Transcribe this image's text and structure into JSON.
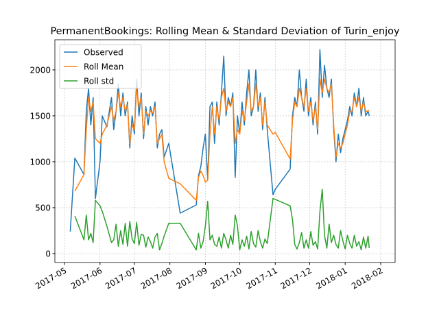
{
  "chart_data": {
    "type": "line",
    "title": "PermanentBookings: Rolling Mean & Standard Deviation of Turin_enjoy",
    "x": [
      736455,
      736459,
      736467,
      736469,
      736471,
      736473,
      736475,
      736477,
      736481,
      736483,
      736487,
      736491,
      736493,
      736495,
      736497,
      736499,
      736501,
      736503,
      736505,
      736507,
      736509,
      736511,
      736513,
      736515,
      736517,
      736519,
      736521,
      736523,
      736525,
      736527,
      736529,
      736531,
      736533,
      736535,
      736537,
      736541,
      736551,
      736565,
      736567,
      736569,
      736571,
      736573,
      736575,
      736577,
      736579,
      736581,
      736583,
      736585,
      736587,
      736589,
      736591,
      736593,
      736595,
      736597,
      736599,
      736601,
      736603,
      736605,
      736607,
      736609,
      736611,
      736613,
      736615,
      736617,
      736619,
      736621,
      736623,
      736625,
      736627,
      736632,
      736634,
      736647,
      736649,
      736651,
      736653,
      736655,
      736657,
      736659,
      736661,
      736663,
      736665,
      736667,
      736669,
      736671,
      736673,
      736675,
      736677,
      736679,
      736681,
      736683,
      736685,
      736687,
      736689,
      736691,
      736693,
      736695,
      736697,
      736699,
      736701,
      736703,
      736705,
      736707,
      736709,
      736711,
      736713,
      736715,
      736716
    ],
    "series": [
      {
        "name": "Observed",
        "color": "#1f77b4",
        "values": [
          240,
          1040,
          860,
          1550,
          1800,
          1400,
          1700,
          600,
          1000,
          1500,
          1380,
          1700,
          1350,
          1550,
          1850,
          1500,
          1750,
          1500,
          1650,
          1150,
          1500,
          1300,
          1900,
          1500,
          1750,
          1250,
          1600,
          1400,
          1600,
          1500,
          1650,
          1150,
          1300,
          1350,
          1050,
          1200,
          440,
          530,
          850,
          950,
          1150,
          1300,
          800,
          1600,
          1650,
          1200,
          1650,
          1400,
          1750,
          2150,
          1500,
          1700,
          1600,
          1750,
          830,
          1500,
          1300,
          1650,
          1400,
          1750,
          2000,
          1500,
          1600,
          2000,
          1550,
          1750,
          1350,
          1700,
          1350,
          640,
          700,
          920,
          1500,
          1700,
          1600,
          2000,
          1700,
          1550,
          1900,
          1500,
          1700,
          1400,
          1650,
          1300,
          2220,
          1700,
          2050,
          1800,
          1700,
          1900,
          1350,
          1000,
          1300,
          1100,
          1250,
          1350,
          1450,
          1600,
          1500,
          1750,
          1600,
          1800,
          1500,
          1700,
          1500,
          1550,
          1500
        ]
      },
      {
        "name": "Roll Mean",
        "color": "#ff7f0e",
        "values": [
          null,
          680,
          860,
          1350,
          1700,
          1550,
          1650,
          1250,
          1200,
          1300,
          1400,
          1600,
          1450,
          1550,
          1750,
          1600,
          1700,
          1550,
          1620,
          1200,
          1400,
          1350,
          1800,
          1600,
          1700,
          1300,
          1550,
          1500,
          1550,
          1530,
          1600,
          1200,
          1250,
          1300,
          1000,
          820,
          760,
          580,
          830,
          900,
          850,
          780,
          800,
          1300,
          1600,
          1300,
          1600,
          1450,
          1700,
          1800,
          1550,
          1650,
          1600,
          1700,
          1200,
          1350,
          1300,
          1550,
          1450,
          1650,
          1850,
          1550,
          1600,
          1850,
          1600,
          1700,
          1400,
          1650,
          1400,
          1300,
          1320,
          1030,
          1450,
          1650,
          1600,
          1800,
          1700,
          1600,
          1800,
          1550,
          1650,
          1450,
          1600,
          1350,
          1900,
          1750,
          1900,
          1800,
          1750,
          1850,
          1400,
          1050,
          1200,
          1150,
          1200,
          1300,
          1400,
          1550,
          1550,
          1700,
          1600,
          1700,
          1550,
          1650,
          1550,
          1550,
          1560
        ]
      },
      {
        "name": "Roll std",
        "color": "#2ca02c",
        "values": [
          null,
          410,
          150,
          420,
          150,
          220,
          120,
          580,
          520,
          460,
          300,
          120,
          150,
          320,
          80,
          250,
          100,
          330,
          80,
          350,
          160,
          110,
          340,
          90,
          210,
          200,
          70,
          180,
          130,
          60,
          180,
          220,
          40,
          110,
          190,
          330,
          330,
          40,
          220,
          60,
          130,
          300,
          570,
          150,
          200,
          100,
          80,
          180,
          60,
          220,
          150,
          60,
          200,
          100,
          420,
          300,
          40,
          150,
          80,
          190,
          50,
          240,
          110,
          70,
          250,
          130,
          60,
          160,
          110,
          600,
          590,
          520,
          370,
          100,
          50,
          120,
          230,
          60,
          150,
          60,
          240,
          90,
          130,
          50,
          460,
          700,
          200,
          60,
          320,
          120,
          200,
          100,
          60,
          250,
          140,
          50,
          200,
          110,
          60,
          200,
          80,
          130,
          40,
          180,
          60,
          190,
          60
        ]
      }
    ],
    "xlim": [
      736441.6,
      736738.6
    ],
    "xticks": [
      {
        "value": 736450,
        "label": "2017-05"
      },
      {
        "value": 736481,
        "label": "2017-06"
      },
      {
        "value": 736511,
        "label": "2017-07"
      },
      {
        "value": 736542,
        "label": "2017-08"
      },
      {
        "value": 736573,
        "label": "2017-09"
      },
      {
        "value": 736603,
        "label": "2017-10"
      },
      {
        "value": 736634,
        "label": "2017-11"
      },
      {
        "value": 736664,
        "label": "2017-12"
      },
      {
        "value": 736695,
        "label": "2018-01"
      },
      {
        "value": 736726,
        "label": "2018-02"
      }
    ],
    "ylim": [
      -97,
      2328
    ],
    "yticks": [
      0,
      500,
      1000,
      1500,
      2000
    ],
    "grid": true,
    "legend": "upper-left"
  }
}
